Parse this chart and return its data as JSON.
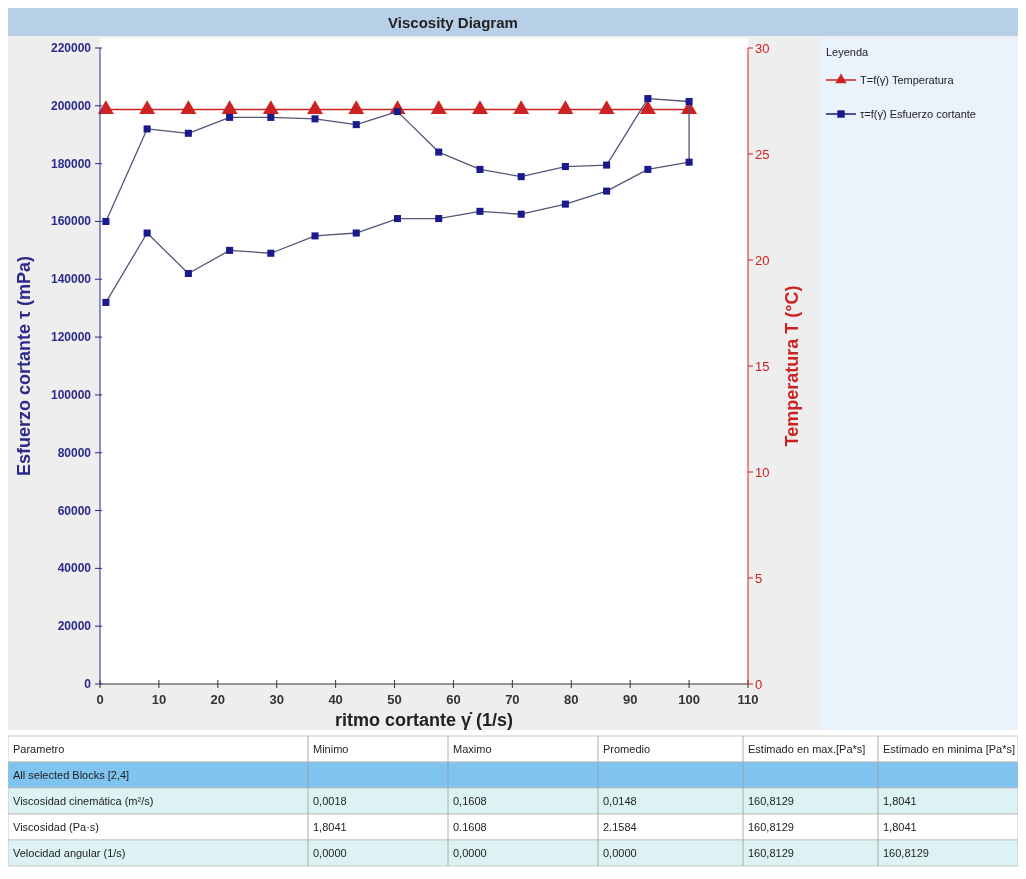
{
  "chart_data": [
    {
      "type": "line",
      "title": "Viscosity Diagram",
      "xlabel": "ritmo cortante γ̇ (1/s)",
      "ylabel": "Esfuerzo cortante τ (mPa)",
      "y2label": "Temperatura T (°C)",
      "legend_title": "Leyenda",
      "legend": "right",
      "grid": false,
      "line_style": "solid",
      "xlim": [
        0,
        110
      ],
      "xticks": [
        0,
        10,
        20,
        30,
        40,
        50,
        60,
        70,
        80,
        90,
        100,
        110
      ],
      "ylim": [
        0,
        220000
      ],
      "yticks": [
        0,
        20000,
        40000,
        60000,
        80000,
        100000,
        120000,
        140000,
        160000,
        180000,
        200000,
        220000
      ],
      "y2lim": [
        0,
        30
      ],
      "y2ticks": [
        0,
        5,
        10,
        15,
        20,
        25,
        30
      ],
      "series": [
        {
          "name": "T=f(γ̇) Temperatura",
          "color": "#cc2222",
          "axis": "y2",
          "marker": "triangle",
          "x": [
            1,
            8,
            15,
            22,
            29,
            36.5,
            43.5,
            50.5,
            57.5,
            64.5,
            71.5,
            79,
            86,
            93,
            100
          ],
          "values": [
            27.1,
            27.1,
            27.1,
            27.1,
            27.1,
            27.1,
            27.1,
            27.1,
            27.1,
            27.1,
            27.1,
            27.1,
            27.1,
            27.1,
            27.1
          ]
        },
        {
          "name": "τ=f(γ̇) Esfuerzo cortante",
          "color": "#1a1a8c",
          "marker": "square",
          "x": [
            1,
            8,
            15,
            22,
            29,
            36.5,
            43.5,
            50.5,
            57.5,
            64.5,
            71.5,
            79,
            86,
            93,
            100,
            100,
            93,
            86,
            79,
            71.5,
            64.5,
            57.5,
            50.5,
            43.5,
            36.5,
            29,
            22,
            15,
            8,
            1
          ],
          "values": [
            132000,
            156000,
            142000,
            150000,
            149000,
            155000,
            156000,
            161000,
            161000,
            163500,
            162500,
            166000,
            170500,
            178000,
            180500,
            201500,
            202500,
            179500,
            179000,
            175500,
            178000,
            184000,
            198000,
            193500,
            195500,
            196000,
            196000,
            190500,
            192000,
            160000
          ]
        }
      ]
    },
    {
      "type": "other",
      "annotations": [
        "Parametro",
        "Minimo",
        "Maximo",
        "Promedio",
        "Estimado en max.[Pa*s]",
        "Estimado en minima [Pa*s]",
        "All selected Blocks [2,4]",
        "Viscosidad cinemática (m²/s)",
        "0,0018",
        "0,1608",
        "0,0148",
        "160,8129",
        "1,8041",
        "Viscosidad (Pa·s)",
        "1,8041",
        "0.1608",
        "2.1584",
        "160,8129",
        "1,8041",
        "Velocidad angular (1/s)",
        "0,0000",
        "0,0000",
        "0,0000",
        "160,8129",
        "160,8129"
      ]
    }
  ]
}
